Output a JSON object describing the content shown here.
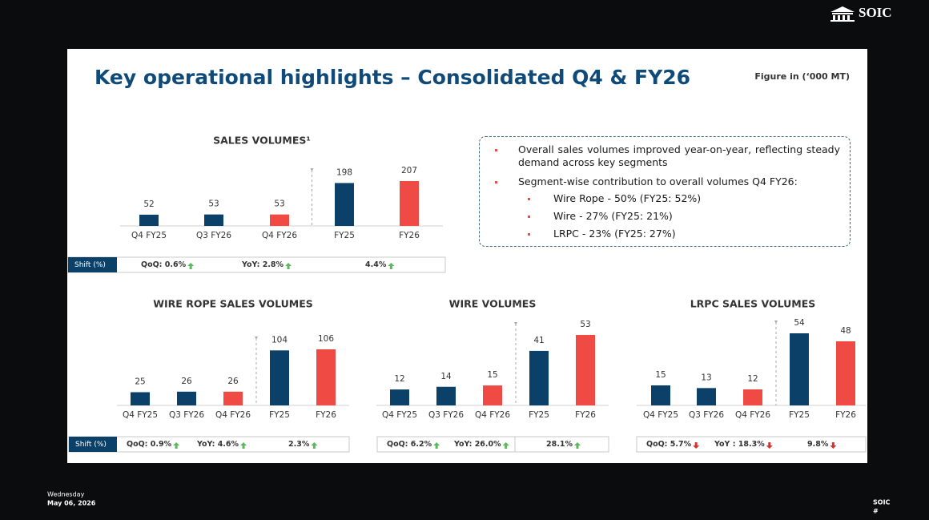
{
  "logo": "SOIC",
  "slide": {
    "title": "Key operational highlights – Consolidated Q4 & FY26",
    "unit_note": "Figure in (‘000 MT)",
    "highlights": [
      {
        "text": "Overall sales volumes improved year-on-year, reflecting steady demand across key segments"
      },
      {
        "text": "Segment-wise contribution to overall volumes Q4 FY26:",
        "sub": [
          "Wire Rope - 50% (FY25: 52%)",
          "Wire - 27% (FY25: 21%)",
          "LRPC - 23% (FY25: 27%)"
        ]
      }
    ]
  },
  "chart_data": [
    {
      "type": "bar",
      "title": "SALES VOLUMES¹",
      "categories": [
        "Q4 FY25",
        "Q3 FY26",
        "Q4 FY26",
        "FY25",
        "FY26"
      ],
      "values": [
        52,
        53,
        53,
        198,
        207
      ],
      "colors": [
        "#0b4168",
        "#0b4168",
        "#f04a45",
        "#0b4168",
        "#f04a45"
      ],
      "shift": {
        "label": "Shift (%)",
        "items": [
          "QoQ: 0.6%",
          "YoY: 2.8%",
          "4.4%"
        ],
        "directions": [
          "up",
          "up",
          "up"
        ]
      }
    },
    {
      "type": "bar",
      "title": "WIRE ROPE SALES VOLUMES",
      "categories": [
        "Q4 FY25",
        "Q3 FY26",
        "Q4 FY26",
        "FY25",
        "FY26"
      ],
      "values": [
        25,
        26,
        26,
        104,
        106
      ],
      "colors": [
        "#0b4168",
        "#0b4168",
        "#f04a45",
        "#0b4168",
        "#f04a45"
      ],
      "shift": {
        "label": "Shift (%)",
        "items": [
          "QoQ: 0.9%",
          "YoY: 4.6%",
          "2.3%"
        ],
        "directions": [
          "up",
          "up",
          "up"
        ]
      }
    },
    {
      "type": "bar",
      "title": "WIRE VOLUMES",
      "categories": [
        "Q4 FY25",
        "Q3 FY26",
        "Q4 FY26",
        "FY25",
        "FY26"
      ],
      "values": [
        12,
        14,
        15,
        41,
        53
      ],
      "colors": [
        "#0b4168",
        "#0b4168",
        "#f04a45",
        "#0b4168",
        "#f04a45"
      ],
      "shift": {
        "items": [
          "QoQ: 6.2%",
          "YoY: 26.0%",
          "28.1%"
        ],
        "directions": [
          "up",
          "up",
          "up"
        ]
      }
    },
    {
      "type": "bar",
      "title": "LRPC SALES VOLUMES",
      "categories": [
        "Q4 FY25",
        "Q3 FY26",
        "Q4 FY26",
        "FY25",
        "FY26"
      ],
      "values": [
        15,
        13,
        12,
        54,
        48
      ],
      "colors": [
        "#0b4168",
        "#0b4168",
        "#f04a45",
        "#0b4168",
        "#f04a45"
      ],
      "shift": {
        "items": [
          "QoQ: 5.7%",
          "YoY : 18.3%",
          "9.8%"
        ],
        "directions": [
          "down",
          "down",
          "down"
        ]
      }
    }
  ],
  "footer": {
    "day": "Wednesday",
    "date": "May 06, 2026",
    "brand": "SOIC",
    "page": "#"
  }
}
